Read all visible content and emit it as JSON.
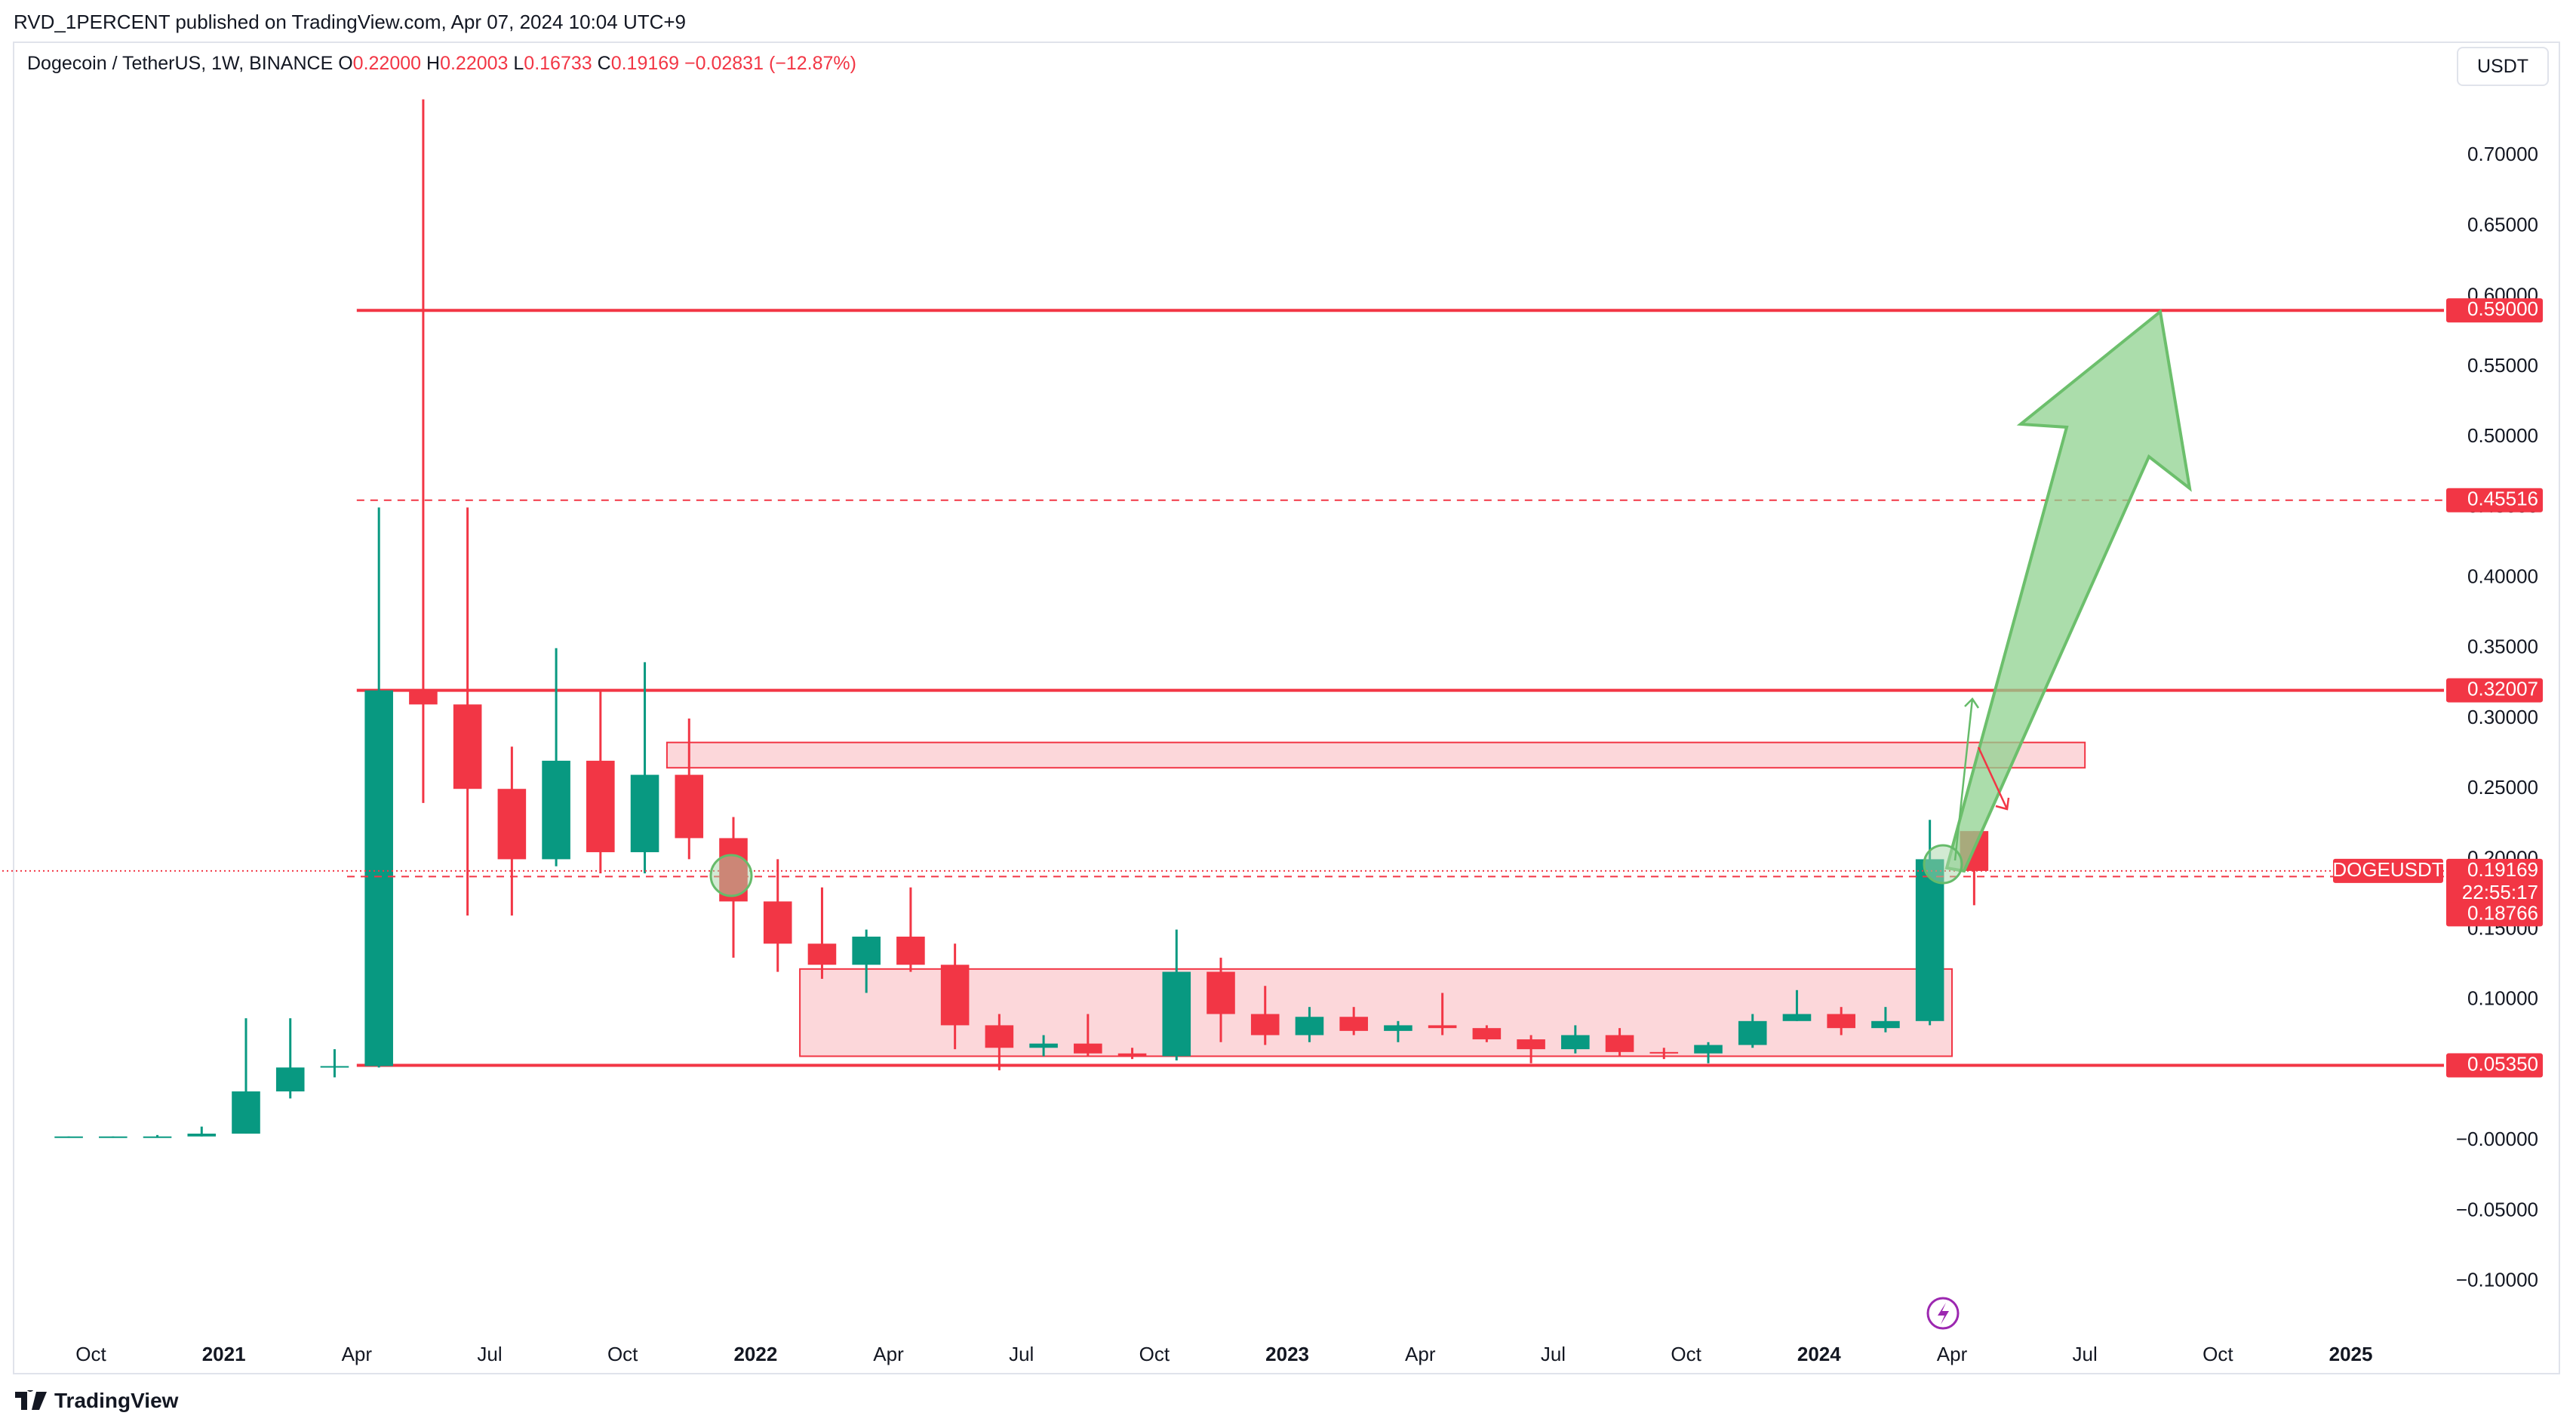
{
  "header": {
    "publisher": "RVD_1PERCENT published on TradingView.com, Apr 07, 2024 10:04 UTC+9",
    "footer": "TradingView",
    "currency_button": "USDT"
  },
  "chart_data": {
    "type": "candlestick",
    "title": "Dogecoin / TetherUS, 1W, BINANCE",
    "ohlc_legend": {
      "keys": [
        "O",
        "H",
        "L",
        "C"
      ],
      "values": [
        {
          "value": 0.22,
          "label": "0.22000"
        },
        {
          "value": 0.22003,
          "label": "0.22003"
        },
        {
          "value": 0.16733,
          "label": "0.16733"
        },
        {
          "value": 0.19169,
          "label": "0.19169"
        }
      ],
      "change": {
        "value": -0.02831,
        "label": "−0.02831"
      },
      "change_pct": {
        "value": -12.87,
        "label": "(−12.87%)"
      }
    },
    "x": [
      "2020-09",
      "2020-10",
      "2020-11",
      "2020-12",
      "2021-01",
      "2021-02",
      "2021-03",
      "2021-04",
      "2021-05",
      "2021-06",
      "2021-07",
      "2021-08",
      "2021-09",
      "2021-10",
      "2021-11",
      "2021-12",
      "2022-01",
      "2022-02",
      "2022-03",
      "2022-04",
      "2022-05",
      "2022-06",
      "2022-07",
      "2022-08",
      "2022-09",
      "2022-10",
      "2022-11",
      "2022-12",
      "2023-01",
      "2023-02",
      "2023-03",
      "2023-04",
      "2023-05",
      "2023-06",
      "2023-07",
      "2023-08",
      "2023-09",
      "2023-10",
      "2023-11",
      "2023-12",
      "2024-01",
      "2024-02",
      "2024-03",
      "2024-04"
    ],
    "series": [
      {
        "name": "DOGEUSDT",
        "up_color": "#089981",
        "down_color": "#f23645",
        "open": [
          0.003,
          0.003,
          0.003,
          0.003,
          0.005,
          0.035,
          0.052,
          0.053,
          0.32,
          0.31,
          0.25,
          0.2,
          0.27,
          0.205,
          0.26,
          0.215,
          0.17,
          0.14,
          0.125,
          0.145,
          0.125,
          0.082,
          0.066,
          0.069,
          0.062,
          0.06,
          0.12,
          0.09,
          0.075,
          0.088,
          0.078,
          0.082,
          0.08,
          0.072,
          0.065,
          0.075,
          0.063,
          0.062,
          0.068,
          0.085,
          0.09,
          0.08,
          0.085,
          0.22
        ],
        "high": [
          0.003,
          0.003,
          0.004,
          0.01,
          0.087,
          0.087,
          0.065,
          0.45,
          0.74,
          0.45,
          0.28,
          0.35,
          0.32,
          0.34,
          0.3,
          0.23,
          0.2,
          0.18,
          0.15,
          0.18,
          0.14,
          0.09,
          0.075,
          0.09,
          0.066,
          0.15,
          0.13,
          0.11,
          0.095,
          0.095,
          0.085,
          0.105,
          0.082,
          0.075,
          0.082,
          0.08,
          0.066,
          0.07,
          0.09,
          0.107,
          0.095,
          0.095,
          0.228,
          0.22003
        ],
        "low": [
          0.002,
          0.002,
          0.002,
          0.003,
          0.005,
          0.03,
          0.045,
          0.052,
          0.24,
          0.16,
          0.16,
          0.195,
          0.19,
          0.19,
          0.2,
          0.13,
          0.12,
          0.115,
          0.105,
          0.12,
          0.065,
          0.05,
          0.06,
          0.06,
          0.058,
          0.057,
          0.07,
          0.068,
          0.07,
          0.075,
          0.07,
          0.075,
          0.07,
          0.055,
          0.062,
          0.06,
          0.058,
          0.055,
          0.066,
          0.085,
          0.075,
          0.077,
          0.082,
          0.16733
        ],
        "close": [
          0.003,
          0.003,
          0.003,
          0.005,
          0.035,
          0.052,
          0.053,
          0.32,
          0.31,
          0.25,
          0.2,
          0.27,
          0.205,
          0.26,
          0.215,
          0.17,
          0.14,
          0.125,
          0.145,
          0.125,
          0.082,
          0.066,
          0.069,
          0.062,
          0.06,
          0.12,
          0.09,
          0.075,
          0.088,
          0.078,
          0.082,
          0.08,
          0.072,
          0.065,
          0.075,
          0.063,
          0.062,
          0.068,
          0.085,
          0.09,
          0.08,
          0.085,
          0.2,
          0.19169
        ]
      }
    ],
    "xlim": [
      "2020-08",
      "2025-03"
    ],
    "xticks": [
      {
        "value": "2020-10",
        "label": "Oct"
      },
      {
        "value": "2021-01",
        "label": "2021"
      },
      {
        "value": "2021-04",
        "label": "Apr"
      },
      {
        "value": "2021-07",
        "label": "Jul"
      },
      {
        "value": "2021-10",
        "label": "Oct"
      },
      {
        "value": "2022-01",
        "label": "2022"
      },
      {
        "value": "2022-04",
        "label": "Apr"
      },
      {
        "value": "2022-07",
        "label": "Jul"
      },
      {
        "value": "2022-10",
        "label": "Oct"
      },
      {
        "value": "2023-01",
        "label": "2023"
      },
      {
        "value": "2023-04",
        "label": "Apr"
      },
      {
        "value": "2023-07",
        "label": "Jul"
      },
      {
        "value": "2023-10",
        "label": "Oct"
      },
      {
        "value": "2024-01",
        "label": "2024"
      },
      {
        "value": "2024-04",
        "label": "Apr"
      },
      {
        "value": "2024-07",
        "label": "Jul"
      },
      {
        "value": "2024-10",
        "label": "Oct"
      },
      {
        "value": "2025-01",
        "label": "2025"
      }
    ],
    "ylim": [
      -0.135,
      0.75
    ],
    "yticks": [
      {
        "value": -0.1,
        "label": "−0.10000"
      },
      {
        "value": -0.05,
        "label": "−0.05000"
      },
      {
        "value": 0,
        "label": "−0.00000"
      },
      {
        "value": 0.05,
        "label": "0.05000"
      },
      {
        "value": 0.1,
        "label": "0.10000"
      },
      {
        "value": 0.15,
        "label": "0.15000"
      },
      {
        "value": 0.2,
        "label": "0.20000"
      },
      {
        "value": 0.25,
        "label": "0.25000"
      },
      {
        "value": 0.3,
        "label": "0.30000"
      },
      {
        "value": 0.35,
        "label": "0.35000"
      },
      {
        "value": 0.4,
        "label": "0.40000"
      },
      {
        "value": 0.45,
        "label": "0.45000"
      },
      {
        "value": 0.5,
        "label": "0.50000"
      },
      {
        "value": 0.55,
        "label": "0.55000"
      },
      {
        "value": 0.6,
        "label": "0.60000"
      },
      {
        "value": 0.65,
        "label": "0.65000"
      },
      {
        "value": 0.7,
        "label": "0.70000"
      }
    ],
    "grid": false,
    "levels": [
      {
        "value": 0.59,
        "label": "0.59000",
        "style": "solid",
        "start": "2021-04"
      },
      {
        "value": 0.45516,
        "label": "0.45516",
        "style": "dashed",
        "start": "2021-04"
      },
      {
        "value": 0.32007,
        "label": "0.32007",
        "style": "solid",
        "start": "2021-04"
      },
      {
        "value": 0.0535,
        "label": "0.05350",
        "style": "solid",
        "start": "2021-04"
      }
    ],
    "level_color": "#f23645",
    "zones": [
      {
        "x": [
          "2021-11",
          "2024-07"
        ],
        "y": [
          0.265,
          0.283
        ]
      },
      {
        "x": [
          "2022-02",
          "2024-04"
        ],
        "y": [
          0.06,
          0.122
        ]
      }
    ],
    "last_price": {
      "value": 0.19169,
      "label": "0.19169",
      "countdown": "22:55:17"
    },
    "prev_close": {
      "value": 0.18766,
      "label": "0.18766"
    }
  }
}
